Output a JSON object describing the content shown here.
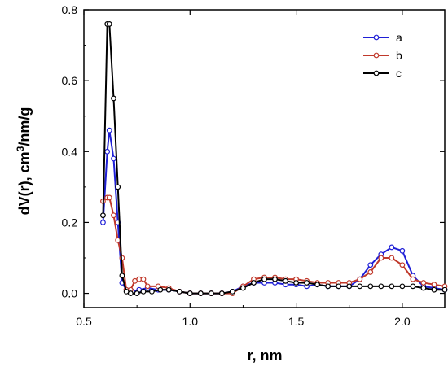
{
  "chart_data": {
    "type": "line",
    "xlabel": "r, nm",
    "ylabel_main": "dV(r), cm",
    "ylabel_sup": "3",
    "ylabel_tail": "/nm/g",
    "xlim": [
      0.5,
      2.2
    ],
    "ylim": [
      -0.04,
      0.8
    ],
    "xticks": [
      0.5,
      1.0,
      1.5,
      2.0
    ],
    "xtick_labels": [
      "0.5",
      "1.0",
      "1.5",
      "2.0"
    ],
    "yticks": [
      0.0,
      0.2,
      0.4,
      0.6,
      0.8
    ],
    "ytick_labels": [
      "0.0",
      "0.2",
      "0.4",
      "0.6",
      "0.8"
    ],
    "grid": false,
    "legend_position": "top-right",
    "series": [
      {
        "name": "a",
        "color": "#1f1fd6",
        "x": [
          0.59,
          0.61,
          0.62,
          0.64,
          0.66,
          0.68,
          0.7,
          0.73,
          0.76,
          0.8,
          0.85,
          0.9,
          0.95,
          1.0,
          1.05,
          1.1,
          1.15,
          1.2,
          1.25,
          1.3,
          1.35,
          1.4,
          1.45,
          1.5,
          1.55,
          1.6,
          1.65,
          1.7,
          1.75,
          1.8,
          1.85,
          1.9,
          1.95,
          2.0,
          2.05,
          2.1,
          2.15,
          2.2
        ],
        "y": [
          0.2,
          0.4,
          0.46,
          0.38,
          0.2,
          0.03,
          0.01,
          0.005,
          0.01,
          0.015,
          0.01,
          0.01,
          0.005,
          0.0,
          0.0,
          0.0,
          0.0,
          0.005,
          0.02,
          0.03,
          0.03,
          0.03,
          0.025,
          0.025,
          0.02,
          0.025,
          0.02,
          0.02,
          0.02,
          0.04,
          0.08,
          0.11,
          0.13,
          0.12,
          0.05,
          0.02,
          0.015,
          0.01
        ]
      },
      {
        "name": "b",
        "color": "#c0392b",
        "x": [
          0.59,
          0.61,
          0.62,
          0.64,
          0.66,
          0.68,
          0.7,
          0.72,
          0.74,
          0.76,
          0.78,
          0.8,
          0.85,
          0.9,
          0.95,
          1.0,
          1.05,
          1.1,
          1.15,
          1.2,
          1.25,
          1.3,
          1.35,
          1.4,
          1.45,
          1.5,
          1.55,
          1.6,
          1.65,
          1.7,
          1.75,
          1.8,
          1.85,
          1.9,
          1.95,
          2.0,
          2.05,
          2.1,
          2.15,
          2.2
        ],
        "y": [
          0.26,
          0.27,
          0.27,
          0.22,
          0.15,
          0.1,
          0.01,
          0.01,
          0.035,
          0.04,
          0.04,
          0.02,
          0.02,
          0.015,
          0.005,
          0.0,
          0.0,
          0.0,
          0.0,
          0.0,
          0.02,
          0.04,
          0.045,
          0.045,
          0.04,
          0.04,
          0.035,
          0.03,
          0.03,
          0.03,
          0.03,
          0.04,
          0.06,
          0.1,
          0.1,
          0.08,
          0.04,
          0.03,
          0.025,
          0.02
        ]
      },
      {
        "name": "c",
        "color": "#000000",
        "x": [
          0.59,
          0.61,
          0.62,
          0.64,
          0.66,
          0.68,
          0.7,
          0.72,
          0.75,
          0.78,
          0.82,
          0.86,
          0.9,
          0.95,
          1.0,
          1.05,
          1.1,
          1.15,
          1.2,
          1.25,
          1.3,
          1.35,
          1.4,
          1.45,
          1.5,
          1.55,
          1.6,
          1.65,
          1.7,
          1.75,
          1.8,
          1.85,
          1.9,
          1.95,
          2.0,
          2.05,
          2.1,
          2.15,
          2.2
        ],
        "y": [
          0.22,
          0.76,
          0.76,
          0.55,
          0.3,
          0.05,
          0.005,
          0.0,
          0.0,
          0.005,
          0.005,
          0.01,
          0.01,
          0.005,
          0.0,
          0.0,
          0.0,
          0.0,
          0.005,
          0.015,
          0.03,
          0.04,
          0.04,
          0.035,
          0.03,
          0.03,
          0.025,
          0.02,
          0.02,
          0.02,
          0.02,
          0.02,
          0.02,
          0.02,
          0.02,
          0.02,
          0.015,
          0.01,
          0.01
        ]
      }
    ]
  }
}
